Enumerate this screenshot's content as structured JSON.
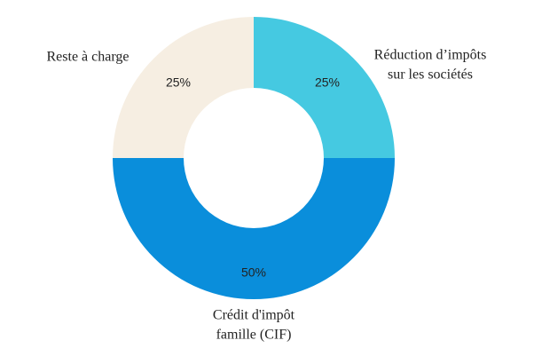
{
  "chart_data": {
    "type": "donut",
    "categories": [
      [
        "Réduction d’impôts",
        "sur les sociétés"
      ],
      [
        "Crédit d'impôt",
        "famille (CIF)"
      ],
      [
        "Reste à charge"
      ]
    ],
    "values": [
      25,
      50,
      25
    ],
    "value_labels": [
      "25%",
      "50%",
      "25%"
    ],
    "colors": [
      "#45c9e1",
      "#0a8edb",
      "#f6eee2"
    ]
  }
}
